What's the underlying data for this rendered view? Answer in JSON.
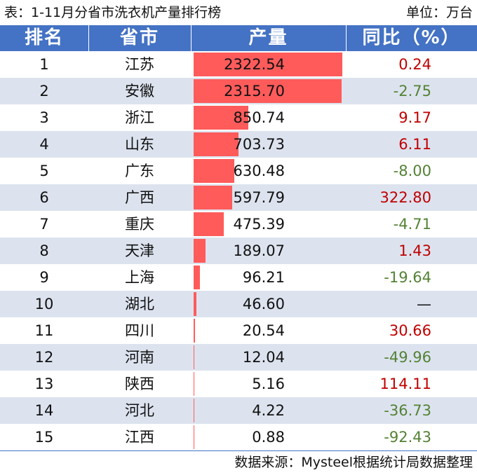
{
  "title": "表：1-11月分省市洗衣机产量排行榜",
  "unit": "单位：万台",
  "footer": "数据来源：Mysteel根据统计局数据整理",
  "colors": {
    "header_bg": "#4472c4",
    "header_text": "#ffffff",
    "alt_row_bg": "#dce3ef",
    "bar": "#ff5b5b",
    "positive": "#c00000",
    "negative": "#548235"
  },
  "chart_data": {
    "type": "table",
    "headers": [
      "排名",
      "省市",
      "产量",
      "同比（%）"
    ],
    "bar_max": 2322.54,
    "rows": [
      {
        "rank": "1",
        "province": "江苏",
        "production": 2322.54,
        "production_text": "2322.54",
        "yoy": "0.24",
        "trend": "up"
      },
      {
        "rank": "2",
        "province": "安徽",
        "production": 2315.7,
        "production_text": "2315.70",
        "yoy": "-2.75",
        "trend": "down"
      },
      {
        "rank": "3",
        "province": "浙江",
        "production": 850.74,
        "production_text": "850.74",
        "yoy": "9.17",
        "trend": "up"
      },
      {
        "rank": "4",
        "province": "山东",
        "production": 703.73,
        "production_text": "703.73",
        "yoy": "6.11",
        "trend": "up"
      },
      {
        "rank": "5",
        "province": "广东",
        "production": 630.48,
        "production_text": "630.48",
        "yoy": "-8.00",
        "trend": "down"
      },
      {
        "rank": "6",
        "province": "广西",
        "production": 597.79,
        "production_text": "597.79",
        "yoy": "322.80",
        "trend": "up"
      },
      {
        "rank": "7",
        "province": "重庆",
        "production": 475.39,
        "production_text": "475.39",
        "yoy": "-4.71",
        "trend": "down"
      },
      {
        "rank": "8",
        "province": "天津",
        "production": 189.07,
        "production_text": "189.07",
        "yoy": "1.43",
        "trend": "up"
      },
      {
        "rank": "9",
        "province": "上海",
        "production": 96.21,
        "production_text": "96.21",
        "yoy": "-19.64",
        "trend": "down"
      },
      {
        "rank": "10",
        "province": "湖北",
        "production": 46.6,
        "production_text": "46.60",
        "yoy": "—",
        "trend": "none"
      },
      {
        "rank": "11",
        "province": "四川",
        "production": 20.54,
        "production_text": "20.54",
        "yoy": "30.66",
        "trend": "up"
      },
      {
        "rank": "12",
        "province": "河南",
        "production": 12.04,
        "production_text": "12.04",
        "yoy": "-49.96",
        "trend": "down"
      },
      {
        "rank": "13",
        "province": "陕西",
        "production": 5.16,
        "production_text": "5.16",
        "yoy": "114.11",
        "trend": "up"
      },
      {
        "rank": "14",
        "province": "河北",
        "production": 4.22,
        "production_text": "4.22",
        "yoy": "-36.73",
        "trend": "down"
      },
      {
        "rank": "15",
        "province": "江西",
        "production": 0.88,
        "production_text": "0.88",
        "yoy": "-92.43",
        "trend": "down"
      }
    ]
  }
}
